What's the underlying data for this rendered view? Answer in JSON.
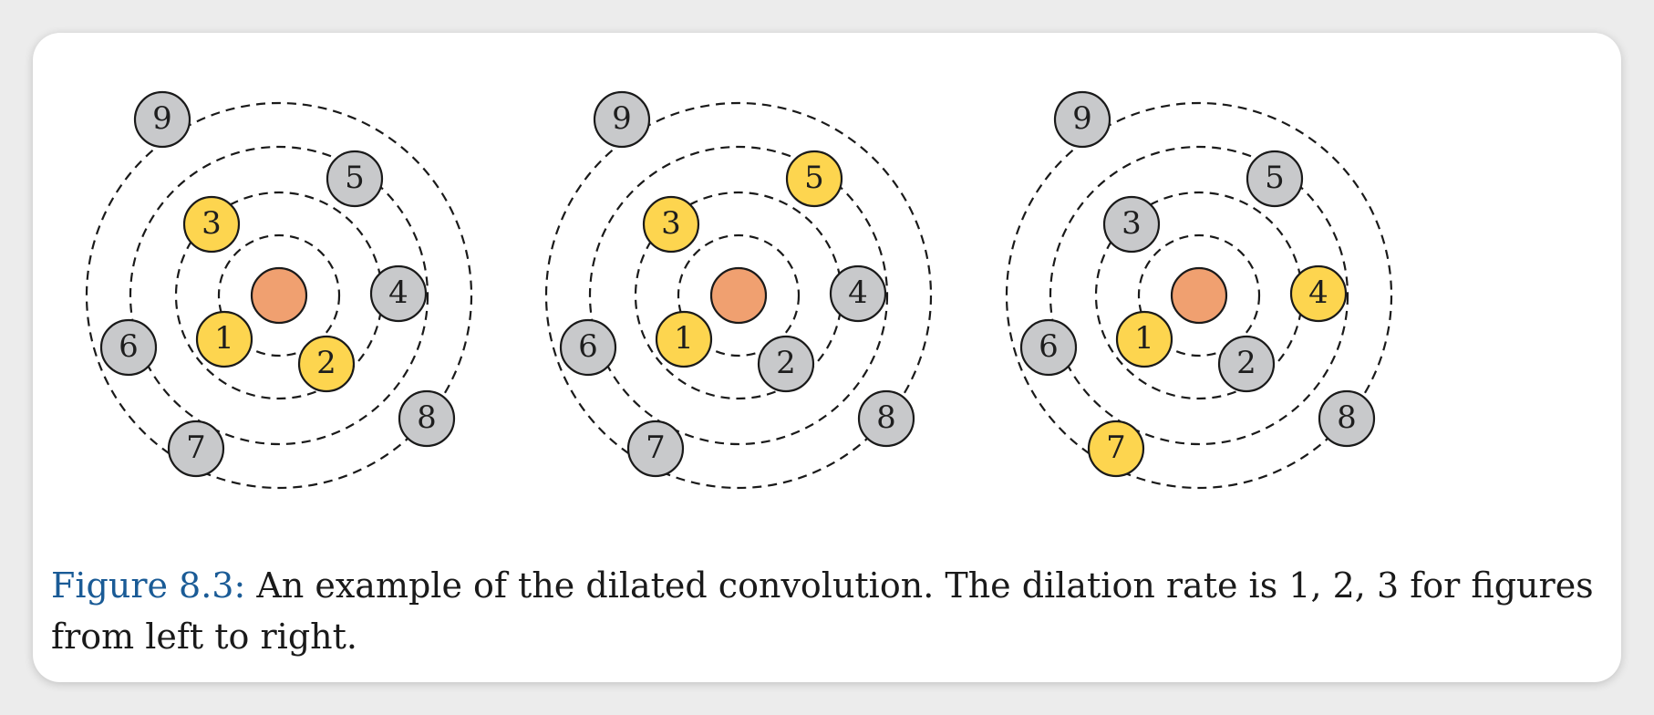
{
  "colors": {
    "center": "#f0a070",
    "highlight": "#fdd54f",
    "inactive": "#c8c9cb",
    "ring_stroke": "#1a1a1a",
    "caption_label": "#1a5b96"
  },
  "panels": [
    {
      "nodes": [
        {
          "label": "1",
          "state": "highlight"
        },
        {
          "label": "2",
          "state": "highlight"
        },
        {
          "label": "3",
          "state": "highlight"
        },
        {
          "label": "4",
          "state": "inactive"
        },
        {
          "label": "5",
          "state": "inactive"
        },
        {
          "label": "6",
          "state": "inactive"
        },
        {
          "label": "7",
          "state": "inactive"
        },
        {
          "label": "8",
          "state": "inactive"
        },
        {
          "label": "9",
          "state": "inactive"
        }
      ]
    },
    {
      "nodes": [
        {
          "label": "1",
          "state": "highlight"
        },
        {
          "label": "2",
          "state": "inactive"
        },
        {
          "label": "3",
          "state": "highlight"
        },
        {
          "label": "4",
          "state": "inactive"
        },
        {
          "label": "5",
          "state": "highlight"
        },
        {
          "label": "6",
          "state": "inactive"
        },
        {
          "label": "7",
          "state": "inactive"
        },
        {
          "label": "8",
          "state": "inactive"
        },
        {
          "label": "9",
          "state": "inactive"
        }
      ]
    },
    {
      "nodes": [
        {
          "label": "1",
          "state": "highlight"
        },
        {
          "label": "2",
          "state": "inactive"
        },
        {
          "label": "3",
          "state": "inactive"
        },
        {
          "label": "4",
          "state": "highlight"
        },
        {
          "label": "5",
          "state": "inactive"
        },
        {
          "label": "6",
          "state": "inactive"
        },
        {
          "label": "7",
          "state": "highlight"
        },
        {
          "label": "8",
          "state": "inactive"
        },
        {
          "label": "9",
          "state": "inactive"
        }
      ]
    }
  ],
  "caption": {
    "label": "Figure 8.3:",
    "text": " An example of the dilated convolution. The dilation rate is 1, 2, 3 for figures from left to right."
  }
}
